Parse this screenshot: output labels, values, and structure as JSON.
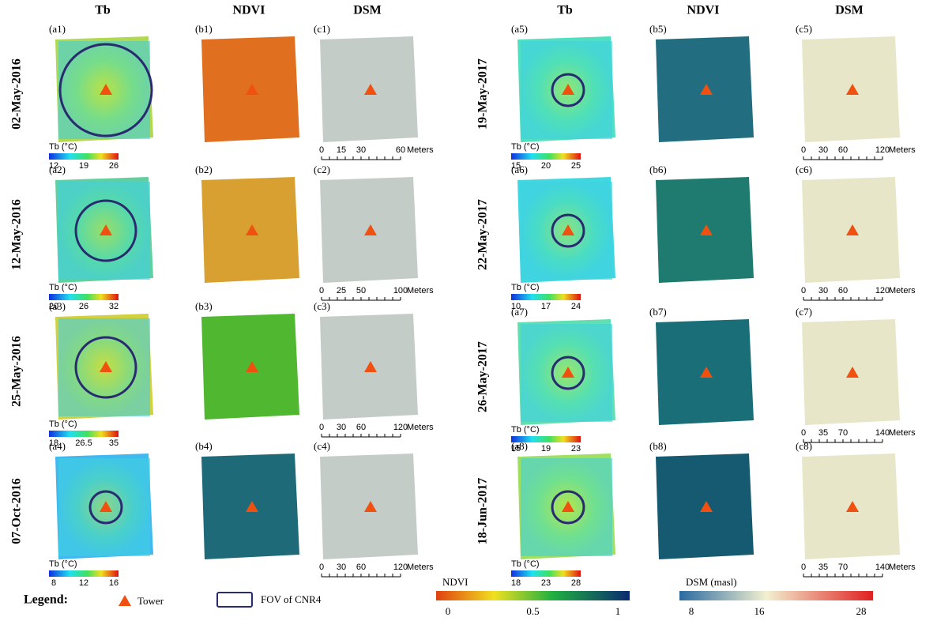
{
  "headers": [
    "Tb",
    "NDVI",
    "DSM",
    "Tb",
    "NDVI",
    "DSM"
  ],
  "rows": [
    {
      "date": "02-May-2016",
      "panels": [
        "(a1)",
        "(b1)",
        "(c1)"
      ],
      "tb_title": "Tb (°C)",
      "tb_ticks": [
        12,
        19,
        26
      ],
      "scale_ticks": [
        0,
        15,
        30,
        60
      ],
      "scale_unit": "Meters"
    },
    {
      "date": "12-May-2016",
      "panels": [
        "(a2)",
        "(b2)",
        "(c2)"
      ],
      "tb_title": "Tb (°C)",
      "tb_ticks": [
        20,
        26,
        32
      ],
      "scale_ticks": [
        0,
        25,
        50,
        100
      ],
      "scale_unit": "Meters"
    },
    {
      "date": "25-May-2016",
      "panels": [
        "(a3)",
        "(b3)",
        "(c3)"
      ],
      "tb_title": "Tb (°C)",
      "tb_ticks": [
        18,
        26.5,
        35
      ],
      "scale_ticks": [
        0,
        30,
        60,
        120
      ],
      "scale_unit": "Meters"
    },
    {
      "date": "07-Oct-2016",
      "panels": [
        "(a4)",
        "(b4)",
        "(c4)"
      ],
      "tb_title": "Tb (°C)",
      "tb_ticks": [
        8,
        12,
        16
      ],
      "scale_ticks": [
        0,
        30,
        60,
        120
      ],
      "scale_unit": "Meters"
    },
    {
      "date": "19-May-2017",
      "panels": [
        "(a5)",
        "(b5)",
        "(c5)"
      ],
      "tb_title": "Tb (°C)",
      "tb_ticks": [
        15,
        20,
        25
      ],
      "scale_ticks": [
        0,
        30,
        60,
        120
      ],
      "scale_unit": "Meters"
    },
    {
      "date": "22-May-2017",
      "panels": [
        "(a6)",
        "(b6)",
        "(c6)"
      ],
      "tb_title": "Tb (°C)",
      "tb_ticks": [
        10,
        17,
        24
      ],
      "scale_ticks": [
        0,
        30,
        60,
        120
      ],
      "scale_unit": "Meters"
    },
    {
      "date": "26-May-2017",
      "panels": [
        "(a7)",
        "(b7)",
        "(c7)"
      ],
      "tb_title": "Tb (°C)",
      "tb_ticks": [
        15,
        19,
        23
      ],
      "scale_ticks": [
        0,
        35,
        70,
        140
      ],
      "scale_unit": "Meters"
    },
    {
      "date": "18-Jun-2017",
      "panels": [
        "(a8)",
        "(b8)",
        "(c8)"
      ],
      "tb_title": "Tb (°C)",
      "tb_ticks": [
        18,
        23,
        28
      ],
      "scale_ticks": [
        0,
        35,
        70,
        140
      ],
      "scale_unit": "Meters"
    }
  ],
  "legend": {
    "title": "Legend:",
    "tower": "Tower",
    "fov": "FOV of CNR4",
    "ndvi_title": "NDVI",
    "ndvi_ticks": [
      0,
      0.5,
      1
    ],
    "dsm_title": "DSM (masl)",
    "dsm_ticks": [
      8,
      16,
      28
    ]
  }
}
